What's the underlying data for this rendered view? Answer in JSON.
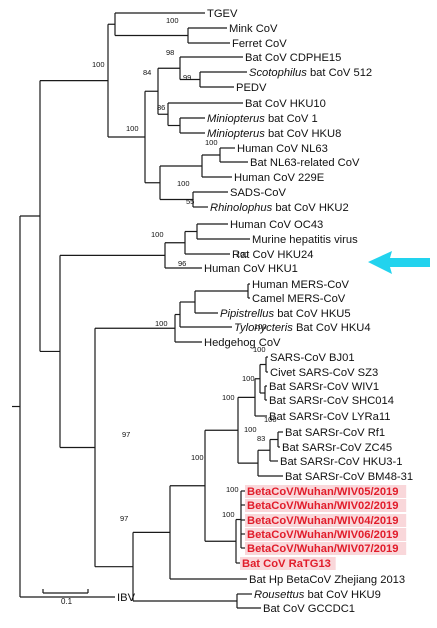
{
  "leaves": [
    {
      "id": "tgev",
      "label": "TGEV"
    },
    {
      "id": "mink",
      "label": "Mink CoV"
    },
    {
      "id": "ferret",
      "label": "Ferret CoV"
    },
    {
      "id": "cdphe15",
      "label": "Bat CoV CDPHE15"
    },
    {
      "id": "scot512",
      "label": "bat CoV 512",
      "italic_prefix": "Scotophilus"
    },
    {
      "id": "pedv",
      "label": "PEDV"
    },
    {
      "id": "hku10",
      "label": "Bat CoV HKU10"
    },
    {
      "id": "mini1",
      "label": "bat CoV 1",
      "italic_prefix": "Miniopterus"
    },
    {
      "id": "hku8",
      "label": "bat CoV HKU8",
      "italic_prefix": "Miniopterus"
    },
    {
      "id": "nl63",
      "label": "Human CoV NL63"
    },
    {
      "id": "batnl63",
      "label": "Bat NL63-related CoV"
    },
    {
      "id": "h229e",
      "label": "Human CoV 229E"
    },
    {
      "id": "sads",
      "label": "SADS-CoV"
    },
    {
      "id": "rhku2",
      "label": "bat CoV HKU2",
      "italic_prefix": "Rhinolophus"
    },
    {
      "id": "oc43",
      "label": "Human CoV OC43"
    },
    {
      "id": "mhv",
      "label": "Murine hepatitis virus"
    },
    {
      "id": "rat24",
      "label": "Rat CoV HKU24"
    },
    {
      "id": "hku1",
      "label": "Human CoV HKU1"
    },
    {
      "id": "hmers",
      "label": "Human MERS-CoV"
    },
    {
      "id": "cmers",
      "label": "Camel MERS-CoV"
    },
    {
      "id": "hku5",
      "label": "bat CoV HKU5",
      "italic_prefix": "Pipistrellus"
    },
    {
      "id": "hku4",
      "label": "Bat CoV HKU4",
      "italic_prefix": "Tylonycteris"
    },
    {
      "id": "hedge",
      "label": "Hedgehog CoV"
    },
    {
      "id": "bj01",
      "label": "SARS-CoV BJ01"
    },
    {
      "id": "sz3",
      "label": "Civet SARS-CoV SZ3"
    },
    {
      "id": "wiv1",
      "label": "Bat SARSr-CoV WIV1"
    },
    {
      "id": "shc014",
      "label": "Bat SARSr-CoV SHC014"
    },
    {
      "id": "lyra11",
      "label": "Bat SARSr-CoV LYRa11"
    },
    {
      "id": "rf1",
      "label": "Bat SARSr-CoV Rf1"
    },
    {
      "id": "zc45",
      "label": "Bat SARSr-CoV ZC45"
    },
    {
      "id": "hku31",
      "label": "Bat SARSr-CoV HKU3-1"
    },
    {
      "id": "bm4831",
      "label": "Bat SARSr-CoV BM48-31"
    },
    {
      "id": "wiv05",
      "label": "BetaCoV/Wuhan/WIV05/2019",
      "highlight": true
    },
    {
      "id": "wiv02",
      "label": "BetaCoV/Wuhan/WIV02/2019",
      "highlight": true
    },
    {
      "id": "wiv04",
      "label": "BetaCoV/Wuhan/WIV04/2019",
      "highlight": true
    },
    {
      "id": "wiv06",
      "label": "BetaCoV/Wuhan/WIV06/2019",
      "highlight": true
    },
    {
      "id": "wiv07",
      "label": "BetaCoV/Wuhan/WIV07/2019",
      "highlight": true
    },
    {
      "id": "ratg13",
      "label": "Bat CoV RaTG13",
      "highlight": true
    },
    {
      "id": "zhejiang",
      "label": "Bat Hp BetaCoV Zhejiang 2013"
    },
    {
      "id": "hku9",
      "label": "bat CoV HKU9",
      "italic_prefix": "Rousettus"
    },
    {
      "id": "gccdc1",
      "label": "Bat CoV GCCDC1"
    },
    {
      "id": "ibv",
      "label": "IBV"
    }
  ],
  "bootstrap_values": [
    {
      "id": "b1",
      "value": "100"
    },
    {
      "id": "b2",
      "value": "100"
    },
    {
      "id": "b3",
      "value": "98"
    },
    {
      "id": "b4",
      "value": "99"
    },
    {
      "id": "b5",
      "value": "84"
    },
    {
      "id": "b6",
      "value": "86"
    },
    {
      "id": "b7",
      "value": "100"
    },
    {
      "id": "b8",
      "value": "100"
    },
    {
      "id": "b9",
      "value": "100"
    },
    {
      "id": "b10",
      "value": "55"
    },
    {
      "id": "b11",
      "value": "100"
    },
    {
      "id": "b12",
      "value": "100"
    },
    {
      "id": "b13",
      "value": "96"
    },
    {
      "id": "b14",
      "value": "100"
    },
    {
      "id": "b15",
      "value": "100"
    },
    {
      "id": "b16",
      "value": "100"
    },
    {
      "id": "b17",
      "value": "100"
    },
    {
      "id": "b18",
      "value": "100"
    },
    {
      "id": "b19",
      "value": "100"
    },
    {
      "id": "b20",
      "value": "100"
    },
    {
      "id": "b21",
      "value": "83"
    },
    {
      "id": "b22",
      "value": "100"
    },
    {
      "id": "b23",
      "value": "100"
    },
    {
      "id": "b24",
      "value": "100"
    },
    {
      "id": "b25",
      "value": "97"
    },
    {
      "id": "b26",
      "value": "97"
    }
  ],
  "scale_bar": {
    "label": "0.1"
  },
  "colors": {
    "highlight": "#e11d2b",
    "arrow": "#22d3ee",
    "branch": "#1a1a1a"
  }
}
